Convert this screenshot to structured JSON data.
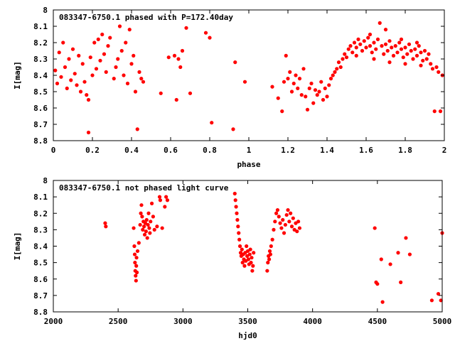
{
  "chart_data": [
    {
      "type": "scatter",
      "title": "083347-6750.1 phased with P=172.40day",
      "xlabel": "phase",
      "ylabel": "I[mag]",
      "xlim": [
        0,
        2
      ],
      "ylim": [
        8.8,
        8
      ],
      "x_ticks": [
        "0",
        "0.2",
        "0.4",
        "0.6",
        "0.8",
        "1",
        "1.2",
        "1.4",
        "1.6",
        "1.8",
        "2"
      ],
      "y_ticks": [
        "8",
        "8.1",
        "8.2",
        "8.3",
        "8.4",
        "8.5",
        "8.6",
        "8.7",
        "8.8"
      ],
      "marker_color": "#ff0000",
      "marker": "filled-circle",
      "series": [
        {
          "points": [
            [
              0.01,
              8.37
            ],
            [
              0.02,
              8.45
            ],
            [
              0.03,
              8.26
            ],
            [
              0.04,
              8.41
            ],
            [
              0.05,
              8.2
            ],
            [
              0.06,
              8.35
            ],
            [
              0.07,
              8.48
            ],
            [
              0.08,
              8.3
            ],
            [
              0.09,
              8.43
            ],
            [
              0.1,
              8.24
            ],
            [
              0.11,
              8.39
            ],
            [
              0.12,
              8.46
            ],
            [
              0.13,
              8.28
            ],
            [
              0.14,
              8.5
            ],
            [
              0.15,
              8.33
            ],
            [
              0.16,
              8.44
            ],
            [
              0.17,
              8.52
            ],
            [
              0.18,
              8.55
            ],
            [
              0.18,
              8.75
            ],
            [
              0.19,
              8.29
            ],
            [
              0.2,
              8.4
            ],
            [
              0.21,
              8.2
            ],
            [
              0.22,
              8.36
            ],
            [
              0.23,
              8.18
            ],
            [
              0.24,
              8.31
            ],
            [
              0.25,
              8.15
            ],
            [
              0.26,
              8.27
            ],
            [
              0.27,
              8.38
            ],
            [
              0.28,
              8.22
            ],
            [
              0.29,
              8.17
            ],
            [
              0.31,
              8.42
            ],
            [
              0.32,
              8.35
            ],
            [
              0.33,
              8.3
            ],
            [
              0.34,
              8.1
            ],
            [
              0.35,
              8.25
            ],
            [
              0.36,
              8.4
            ],
            [
              0.37,
              8.2
            ],
            [
              0.38,
              8.45
            ],
            [
              0.39,
              8.12
            ],
            [
              0.4,
              8.33
            ],
            [
              0.41,
              8.28
            ],
            [
              0.42,
              8.5
            ],
            [
              0.43,
              8.73
            ],
            [
              0.44,
              8.38
            ],
            [
              0.45,
              8.42
            ],
            [
              0.46,
              8.44
            ],
            [
              0.55,
              8.51
            ],
            [
              0.59,
              8.29
            ],
            [
              0.62,
              8.28
            ],
            [
              0.63,
              8.55
            ],
            [
              0.64,
              8.3
            ],
            [
              0.65,
              8.35
            ],
            [
              0.66,
              8.25
            ],
            [
              0.68,
              8.11
            ],
            [
              0.7,
              8.51
            ],
            [
              0.78,
              8.14
            ],
            [
              0.8,
              8.17
            ],
            [
              0.81,
              8.69
            ],
            [
              0.92,
              8.73
            ],
            [
              0.93,
              8.32
            ],
            [
              0.98,
              8.44
            ],
            [
              1.12,
              8.47
            ],
            [
              1.15,
              8.54
            ],
            [
              1.17,
              8.62
            ],
            [
              1.18,
              8.44
            ],
            [
              1.19,
              8.28
            ],
            [
              1.2,
              8.42
            ],
            [
              1.21,
              8.38
            ],
            [
              1.22,
              8.5
            ],
            [
              1.23,
              8.45
            ],
            [
              1.24,
              8.4
            ],
            [
              1.25,
              8.48
            ],
            [
              1.26,
              8.42
            ],
            [
              1.27,
              8.52
            ],
            [
              1.28,
              8.36
            ],
            [
              1.29,
              8.53
            ],
            [
              1.3,
              8.61
            ],
            [
              1.31,
              8.48
            ],
            [
              1.32,
              8.45
            ],
            [
              1.33,
              8.57
            ],
            [
              1.34,
              8.49
            ],
            [
              1.35,
              8.52
            ],
            [
              1.36,
              8.5
            ],
            [
              1.37,
              8.44
            ],
            [
              1.38,
              8.55
            ],
            [
              1.39,
              8.48
            ],
            [
              1.4,
              8.53
            ],
            [
              1.41,
              8.46
            ],
            [
              1.42,
              8.42
            ],
            [
              1.43,
              8.4
            ],
            [
              1.44,
              8.38
            ],
            [
              1.45,
              8.36
            ],
            [
              1.46,
              8.32
            ],
            [
              1.47,
              8.35
            ],
            [
              1.48,
              8.3
            ],
            [
              1.49,
              8.27
            ],
            [
              1.5,
              8.29
            ],
            [
              1.51,
              8.24
            ],
            [
              1.52,
              8.22
            ],
            [
              1.53,
              8.26
            ],
            [
              1.54,
              8.2
            ],
            [
              1.55,
              8.23
            ],
            [
              1.56,
              8.18
            ],
            [
              1.57,
              8.21
            ],
            [
              1.58,
              8.25
            ],
            [
              1.59,
              8.19
            ],
            [
              1.6,
              8.23
            ],
            [
              1.61,
              8.17
            ],
            [
              1.62,
              8.22
            ],
            [
              1.63,
              8.26
            ],
            [
              1.64,
              8.2
            ],
            [
              1.65,
              8.24
            ],
            [
              1.66,
              8.18
            ],
            [
              1.67,
              8.08
            ],
            [
              1.68,
              8.22
            ],
            [
              1.69,
              8.27
            ],
            [
              1.7,
              8.21
            ],
            [
              1.71,
              8.25
            ],
            [
              1.72,
              8.19
            ],
            [
              1.73,
              8.23
            ],
            [
              1.74,
              8.28
            ],
            [
              1.75,
              8.22
            ],
            [
              1.76,
              8.26
            ],
            [
              1.77,
              8.2
            ],
            [
              1.78,
              8.24
            ],
            [
              1.79,
              8.29
            ],
            [
              1.8,
              8.23
            ],
            [
              1.81,
              8.27
            ],
            [
              1.82,
              8.21
            ],
            [
              1.83,
              8.25
            ],
            [
              1.84,
              8.3
            ],
            [
              1.85,
              8.24
            ],
            [
              1.86,
              8.28
            ],
            [
              1.87,
              8.22
            ],
            [
              1.88,
              8.26
            ],
            [
              1.89,
              8.31
            ],
            [
              1.9,
              8.25
            ],
            [
              1.91,
              8.3
            ],
            [
              1.92,
              8.27
            ],
            [
              1.93,
              8.33
            ],
            [
              1.94,
              8.36
            ],
            [
              1.95,
              8.62
            ],
            [
              1.96,
              8.35
            ],
            [
              1.97,
              8.38
            ],
            [
              1.98,
              8.62
            ],
            [
              1.99,
              8.4
            ],
            [
              1.55,
              8.28
            ],
            [
              1.62,
              8.15
            ],
            [
              1.7,
              8.12
            ],
            [
              1.78,
              8.18
            ],
            [
              1.86,
              8.2
            ],
            [
              1.64,
              8.3
            ],
            [
              1.72,
              8.32
            ],
            [
              1.8,
              8.33
            ],
            [
              1.88,
              8.34
            ]
          ]
        }
      ]
    },
    {
      "type": "scatter",
      "title": "083347-6750.1 not phased light curve",
      "xlabel": "hjd0",
      "ylabel": "I[mag]",
      "xlim": [
        2000,
        5000
      ],
      "ylim": [
        8.8,
        8
      ],
      "x_ticks": [
        "2000",
        "2500",
        "3000",
        "3500",
        "4000",
        "4500",
        "5000"
      ],
      "y_ticks": [
        "8",
        "8.1",
        "8.2",
        "8.3",
        "8.4",
        "8.5",
        "8.6",
        "8.7",
        "8.8"
      ],
      "marker_color": "#ff0000",
      "marker": "filled-circle",
      "series": [
        {
          "points": [
            [
              2400,
              8.26
            ],
            [
              2405,
              8.28
            ],
            [
              2620,
              8.29
            ],
            [
              2625,
              8.4
            ],
            [
              2628,
              8.45
            ],
            [
              2630,
              8.5
            ],
            [
              2632,
              8.55
            ],
            [
              2635,
              8.58
            ],
            [
              2638,
              8.61
            ],
            [
              2640,
              8.52
            ],
            [
              2642,
              8.47
            ],
            [
              2645,
              8.56
            ],
            [
              2650,
              8.43
            ],
            [
              2660,
              8.38
            ],
            [
              2670,
              8.27
            ],
            [
              2675,
              8.2
            ],
            [
              2680,
              8.15
            ],
            [
              2685,
              8.22
            ],
            [
              2690,
              8.3
            ],
            [
              2695,
              8.25
            ],
            [
              2700,
              8.28
            ],
            [
              2705,
              8.33
            ],
            [
              2710,
              8.26
            ],
            [
              2715,
              8.31
            ],
            [
              2720,
              8.24
            ],
            [
              2725,
              8.35
            ],
            [
              2730,
              8.27
            ],
            [
              2735,
              8.2
            ],
            [
              2740,
              8.29
            ],
            [
              2745,
              8.32
            ],
            [
              2750,
              8.25
            ],
            [
              2760,
              8.14
            ],
            [
              2770,
              8.22
            ],
            [
              2780,
              8.3
            ],
            [
              2800,
              8.28
            ],
            [
              2820,
              8.1
            ],
            [
              2825,
              8.12
            ],
            [
              2840,
              8.29
            ],
            [
              2860,
              8.16
            ],
            [
              2870,
              8.1
            ],
            [
              2880,
              8.12
            ],
            [
              3400,
              8.08
            ],
            [
              3405,
              8.12
            ],
            [
              3410,
              8.16
            ],
            [
              3415,
              8.2
            ],
            [
              3420,
              8.24
            ],
            [
              3425,
              8.28
            ],
            [
              3430,
              8.32
            ],
            [
              3435,
              8.36
            ],
            [
              3440,
              8.4
            ],
            [
              3445,
              8.44
            ],
            [
              3450,
              8.46
            ],
            [
              3455,
              8.42
            ],
            [
              3460,
              8.5
            ],
            [
              3465,
              8.45
            ],
            [
              3470,
              8.48
            ],
            [
              3475,
              8.52
            ],
            [
              3480,
              8.44
            ],
            [
              3485,
              8.49
            ],
            [
              3490,
              8.4
            ],
            [
              3495,
              8.46
            ],
            [
              3500,
              8.43
            ],
            [
              3505,
              8.48
            ],
            [
              3510,
              8.51
            ],
            [
              3515,
              8.45
            ],
            [
              3520,
              8.42
            ],
            [
              3525,
              8.5
            ],
            [
              3530,
              8.47
            ],
            [
              3535,
              8.55
            ],
            [
              3540,
              8.52
            ],
            [
              3545,
              8.44
            ],
            [
              3650,
              8.55
            ],
            [
              3655,
              8.5
            ],
            [
              3660,
              8.46
            ],
            [
              3665,
              8.48
            ],
            [
              3670,
              8.43
            ],
            [
              3675,
              8.45
            ],
            [
              3680,
              8.4
            ],
            [
              3690,
              8.36
            ],
            [
              3700,
              8.3
            ],
            [
              3710,
              8.25
            ],
            [
              3720,
              8.2
            ],
            [
              3730,
              8.18
            ],
            [
              3740,
              8.22
            ],
            [
              3750,
              8.26
            ],
            [
              3760,
              8.29
            ],
            [
              3770,
              8.24
            ],
            [
              3780,
              8.32
            ],
            [
              3790,
              8.27
            ],
            [
              3800,
              8.21
            ],
            [
              3810,
              8.18
            ],
            [
              3820,
              8.25
            ],
            [
              3830,
              8.2
            ],
            [
              3840,
              8.28
            ],
            [
              3850,
              8.23
            ],
            [
              3860,
              8.3
            ],
            [
              3870,
              8.26
            ],
            [
              3880,
              8.31
            ],
            [
              3890,
              8.25
            ],
            [
              3900,
              8.29
            ],
            [
              4480,
              8.29
            ],
            [
              4490,
              8.62
            ],
            [
              4500,
              8.63
            ],
            [
              4530,
              8.48
            ],
            [
              4540,
              8.74
            ],
            [
              4600,
              8.51
            ],
            [
              4660,
              8.44
            ],
            [
              4680,
              8.62
            ],
            [
              4720,
              8.35
            ],
            [
              4750,
              8.45
            ],
            [
              4920,
              8.73
            ],
            [
              4970,
              8.69
            ],
            [
              4990,
              8.73
            ],
            [
              5000,
              8.32
            ]
          ]
        }
      ]
    }
  ]
}
